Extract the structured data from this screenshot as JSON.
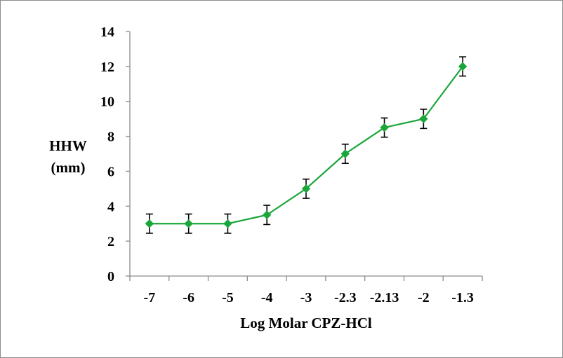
{
  "chart_data": {
    "type": "line",
    "title": "",
    "xlabel": "Log Molar CPZ-HCl",
    "ylabel_lines": [
      "HHW",
      "(mm)"
    ],
    "categories": [
      "-7",
      "-6",
      "-5",
      "-4",
      "-3",
      "-2.3",
      "-2.13",
      "-2",
      "-1.3"
    ],
    "ylim": [
      0,
      14
    ],
    "yticks": [
      0,
      2,
      4,
      6,
      8,
      10,
      12,
      14
    ],
    "grid": false,
    "legend": "none",
    "series": [
      {
        "values": [
          3,
          3,
          3,
          3.5,
          5,
          7,
          8.5,
          9,
          12
        ],
        "errors": [
          0.55,
          0.55,
          0.55,
          0.55,
          0.55,
          0.55,
          0.55,
          0.55,
          0.55
        ],
        "color": "#1aa63a",
        "marker": "diamond"
      }
    ]
  }
}
